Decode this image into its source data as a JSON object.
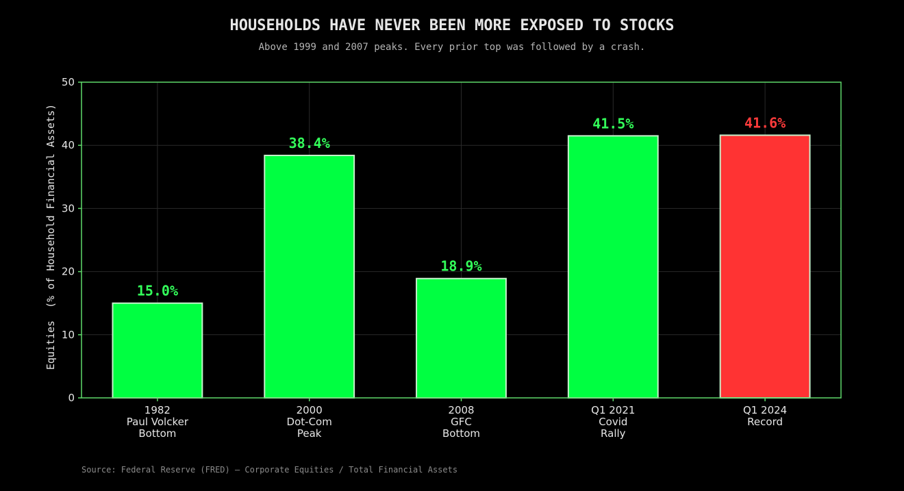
{
  "chart_data": {
    "type": "bar",
    "title": "HOUSEHOLDS HAVE NEVER BEEN MORE EXPOSED TO STOCKS",
    "subtitle": "Above 1999 and 2007 peaks. Every prior top was followed by a crash.",
    "ylabel": "Equities  (% of Household Financial Assets)",
    "xlabel": "",
    "ylim": [
      0,
      50
    ],
    "yticks": [
      0,
      10,
      20,
      30,
      40,
      50
    ],
    "grid": true,
    "categories": [
      [
        "1982",
        "Paul Volcker",
        "Bottom"
      ],
      [
        "2000",
        "Dot-Com",
        "Peak"
      ],
      [
        "2008",
        "GFC",
        "Bottom"
      ],
      [
        "Q1 2021",
        "Covid",
        "Rally"
      ],
      [
        "Q1 2024",
        "Record"
      ]
    ],
    "values": [
      15.0,
      38.4,
      18.9,
      41.5,
      41.6
    ],
    "value_labels": [
      "15.0%",
      "38.4%",
      "18.9%",
      "41.5%",
      "41.6%"
    ],
    "bar_colors": [
      "#00ff41",
      "#00ff41",
      "#00ff41",
      "#00ff41",
      "#ff3333"
    ],
    "label_colors": [
      "#33ff5a",
      "#33ff5a",
      "#33ff5a",
      "#33ff5a",
      "#ff3b3b"
    ],
    "source": "Source: Federal Reserve (FRED) — Corporate Equities / Total Financial Assets"
  },
  "colors": {
    "background": "#000000",
    "frame": "#5fd96a",
    "grid": "#2a2a2a",
    "bar_edge": "#c8f0cc",
    "text": "#e6e6e6",
    "muted": "#b4b4b4",
    "source": "#8a8a8a"
  }
}
